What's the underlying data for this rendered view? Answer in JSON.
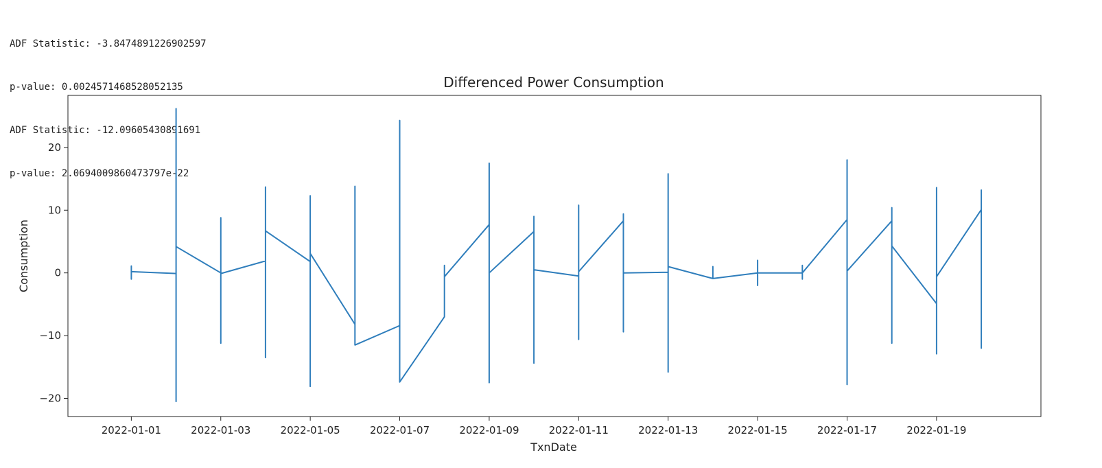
{
  "console_output": [
    "ADF Statistic: -3.8474891226902597",
    "p-value: 0.0024571468528052135",
    "ADF Statistic: -12.09605430891691",
    "p-value: 2.0694009860473797e-22"
  ],
  "chart_data": {
    "type": "line",
    "title": "Differenced Power Consumption",
    "xlabel": "TxnDate",
    "ylabel": "Consumption",
    "x_ticks": [
      "2022-01-01",
      "2022-01-03",
      "2022-01-05",
      "2022-01-07",
      "2022-01-09",
      "2022-01-11",
      "2022-01-13",
      "2022-01-15",
      "2022-01-17",
      "2022-01-19"
    ],
    "y_ticks": [
      -20,
      -10,
      0,
      10,
      20
    ],
    "xlim": [
      "2021-12-30T14:00",
      "2022-01-21T08:00"
    ],
    "ylim": [
      -22.9,
      28.3
    ],
    "grid": false,
    "line_color": "#2f7ebc",
    "series": [
      {
        "points": [
          [
            "2022-01-01",
            0.2
          ],
          [
            "2022-01-01",
            1.1
          ],
          [
            "2022-01-01",
            -1.0
          ],
          [
            "2022-01-01",
            0.2
          ],
          [
            "2022-01-02",
            -0.1
          ],
          [
            "2022-01-02",
            26.2
          ],
          [
            "2022-01-02",
            -20.5
          ],
          [
            "2022-01-02",
            4.2
          ],
          [
            "2022-01-03",
            0.0
          ],
          [
            "2022-01-03",
            8.8
          ],
          [
            "2022-01-03",
            -11.2
          ],
          [
            "2022-01-03",
            -0.1
          ],
          [
            "2022-01-04",
            1.9
          ],
          [
            "2022-01-04",
            13.7
          ],
          [
            "2022-01-04",
            -13.5
          ],
          [
            "2022-01-04",
            6.7
          ],
          [
            "2022-01-05",
            1.8
          ],
          [
            "2022-01-05",
            12.3
          ],
          [
            "2022-01-05",
            -18.1
          ],
          [
            "2022-01-05",
            3.1
          ],
          [
            "2022-01-06",
            -8.2
          ],
          [
            "2022-01-06",
            13.8
          ],
          [
            "2022-01-06",
            -8.3
          ],
          [
            "2022-01-06",
            -11.5
          ],
          [
            "2022-01-07",
            -8.4
          ],
          [
            "2022-01-07",
            24.3
          ],
          [
            "2022-01-07",
            -17.4
          ],
          [
            "2022-01-08",
            -7.0
          ],
          [
            "2022-01-08",
            1.2
          ],
          [
            "2022-01-08",
            -0.6
          ],
          [
            "2022-01-09",
            7.7
          ],
          [
            "2022-01-09",
            17.5
          ],
          [
            "2022-01-09",
            -17.5
          ],
          [
            "2022-01-09",
            0.0
          ],
          [
            "2022-01-10",
            6.6
          ],
          [
            "2022-01-10",
            9.0
          ],
          [
            "2022-01-10",
            -14.4
          ],
          [
            "2022-01-10",
            0.5
          ],
          [
            "2022-01-11",
            -0.5
          ],
          [
            "2022-01-11",
            10.8
          ],
          [
            "2022-01-11",
            -10.6
          ],
          [
            "2022-01-11",
            0.2
          ],
          [
            "2022-01-12",
            8.3
          ],
          [
            "2022-01-12",
            9.4
          ],
          [
            "2022-01-12",
            -9.4
          ],
          [
            "2022-01-12",
            0.0
          ],
          [
            "2022-01-13",
            0.1
          ],
          [
            "2022-01-13",
            15.8
          ],
          [
            "2022-01-13",
            -15.8
          ],
          [
            "2022-01-13",
            1.0
          ],
          [
            "2022-01-14",
            -0.9
          ],
          [
            "2022-01-14",
            1.0
          ],
          [
            "2022-01-14",
            -0.9
          ],
          [
            "2022-01-15",
            0.0
          ],
          [
            "2022-01-15",
            2.0
          ],
          [
            "2022-01-15",
            -2.0
          ],
          [
            "2022-01-15",
            0.0
          ],
          [
            "2022-01-16",
            0.0
          ],
          [
            "2022-01-16",
            1.2
          ],
          [
            "2022-01-16",
            -1.0
          ],
          [
            "2022-01-16",
            0.0
          ],
          [
            "2022-01-17",
            8.5
          ],
          [
            "2022-01-17",
            18.0
          ],
          [
            "2022-01-17",
            -17.8
          ],
          [
            "2022-01-17",
            0.3
          ],
          [
            "2022-01-18",
            8.3
          ],
          [
            "2022-01-18",
            10.4
          ],
          [
            "2022-01-18",
            -11.2
          ],
          [
            "2022-01-18",
            4.3
          ],
          [
            "2022-01-19",
            -4.9
          ],
          [
            "2022-01-19",
            13.6
          ],
          [
            "2022-01-19",
            -12.9
          ],
          [
            "2022-01-19",
            -0.6
          ],
          [
            "2022-01-20",
            10.1
          ],
          [
            "2022-01-20",
            13.2
          ],
          [
            "2022-01-20",
            -12.0
          ],
          [
            "2022-01-20",
            10.2
          ]
        ]
      }
    ]
  }
}
